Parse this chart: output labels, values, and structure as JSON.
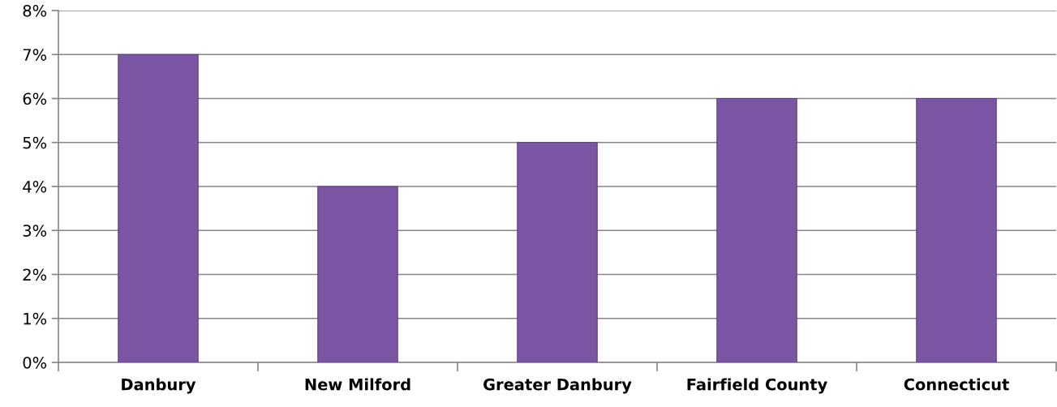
{
  "chart_data": {
    "type": "bar",
    "categories": [
      "Danbury",
      "New Milford",
      "Greater Danbury",
      "Fairfield County",
      "Connecticut"
    ],
    "values": [
      7,
      4,
      5,
      6,
      6
    ],
    "color": "#7b56a4",
    "ylim": [
      0,
      8
    ],
    "yticks": [
      {
        "value": 0,
        "label": "0%"
      },
      {
        "value": 1,
        "label": "1%"
      },
      {
        "value": 2,
        "label": "2%"
      },
      {
        "value": 3,
        "label": "3%"
      },
      {
        "value": 4,
        "label": "4%"
      },
      {
        "value": 5,
        "label": "5%"
      },
      {
        "value": 6,
        "label": "6%"
      },
      {
        "value": 7,
        "label": "7%"
      },
      {
        "value": 8,
        "label": "8%"
      }
    ],
    "grid": "y"
  }
}
